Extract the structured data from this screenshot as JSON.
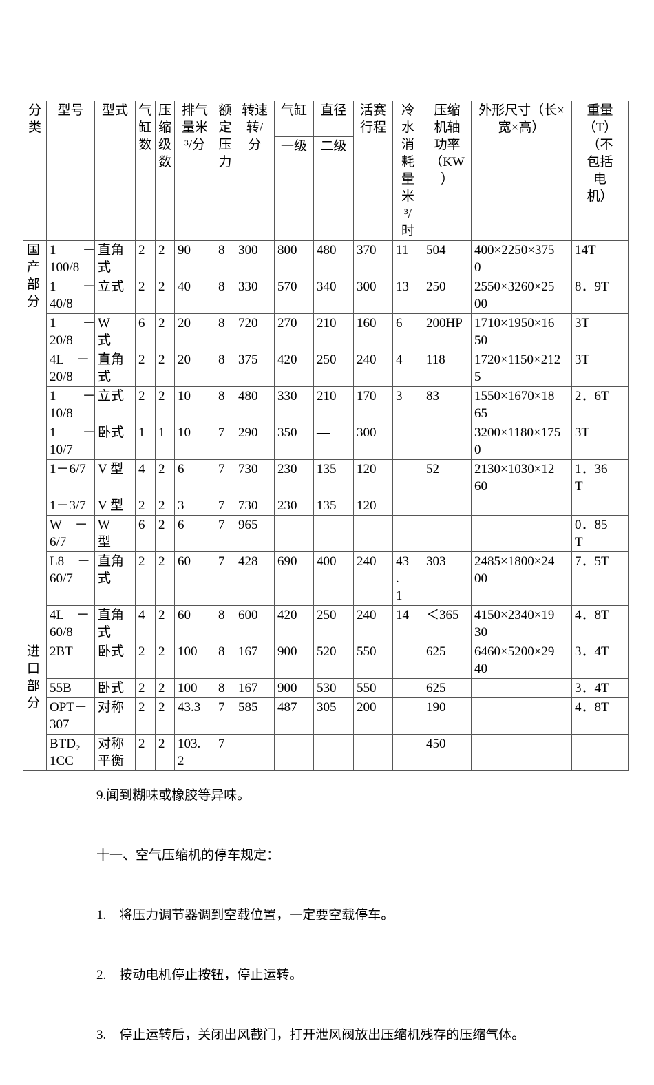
{
  "table": {
    "border_color": "#565656",
    "header": {
      "category": "分\n类",
      "model": "型号",
      "type": "型式",
      "cylinders": "气\n缸\n数",
      "stages": "压\n缩\n级\n数",
      "displacement": "排气\n量米\n³/分",
      "rated_pressure": "额\n定\n压\n力",
      "speed": "转速\n转/\n分",
      "cylinder": "气缸",
      "diameter": "直径",
      "stage1": "一级",
      "stage2": "二级",
      "piston_stroke": "活赛\n行程",
      "cooling_water": "冷\n水\n消\n耗\n量\n米\n³/\n时",
      "shaft_power": "压缩\n机轴\n功率\n（KW\n）",
      "dimensions": "外形尺寸（长×\n宽×高）",
      "weight": "重量\n（T）\n（不\n包括\n电\n机）"
    },
    "groups": [
      {
        "category": "国\n产\n部\n分",
        "rows": [
          {
            "model": "1　　－\n100/8",
            "type": "直角\n式",
            "cylinders": "2",
            "stages": "2",
            "displacement": "90",
            "pressure": "8",
            "speed": "300",
            "stage1": "800",
            "stage2": "480",
            "stroke": "370",
            "cooling": "11",
            "power": "504",
            "dimensions": "400×2250×375\n0",
            "weight": "14T"
          },
          {
            "model": "1　　－\n40/8",
            "type": "立式",
            "cylinders": "2",
            "stages": "2",
            "displacement": "40",
            "pressure": "8",
            "speed": "330",
            "stage1": "570",
            "stage2": "340",
            "stroke": "300",
            "cooling": "13",
            "power": "250",
            "dimensions": "2550×3260×25\n00",
            "weight": "8．9T"
          },
          {
            "model": "1　　－\n20/8",
            "type": "W\n式",
            "cylinders": "6",
            "stages": "2",
            "displacement": "20",
            "pressure": "8",
            "speed": "720",
            "stage1": "270",
            "stage2": "210",
            "stroke": "160",
            "cooling": "6",
            "power": "200HP",
            "dimensions": "1710×1950×16\n50",
            "weight": "3T"
          },
          {
            "model": "4L　－\n20/8",
            "type": "直角\n式",
            "cylinders": "2",
            "stages": "2",
            "displacement": "20",
            "pressure": "8",
            "speed": "375",
            "stage1": "420",
            "stage2": "250",
            "stroke": "240",
            "cooling": "4",
            "power": "118",
            "dimensions": "1720×1150×212\n5",
            "weight": "3T"
          },
          {
            "model": "1　　－\n10/8",
            "type": "立式",
            "cylinders": "2",
            "stages": "2",
            "displacement": "10",
            "pressure": "8",
            "speed": "480",
            "stage1": "330",
            "stage2": "210",
            "stroke": "170",
            "cooling": "3",
            "power": "83",
            "dimensions": "1550×1670×18\n65",
            "weight": "2．6T"
          },
          {
            "model": "1　　－\n10/7",
            "type": "卧式",
            "cylinders": "1",
            "stages": "1",
            "displacement": "10",
            "pressure": "7",
            "speed": "290",
            "stage1": "350",
            "stage2": "—",
            "stroke": "300",
            "cooling": "",
            "power": "",
            "dimensions": "3200×1180×175\n0",
            "weight": "3T"
          },
          {
            "model": "1－6/7",
            "type": "V 型",
            "cylinders": "4",
            "stages": "2",
            "displacement": "6",
            "pressure": "7",
            "speed": "730",
            "stage1": "230",
            "stage2": "135",
            "stroke": "120",
            "cooling": "",
            "power": "52",
            "dimensions": "2130×1030×12\n60",
            "weight": "1．36\nT"
          },
          {
            "model": "1－3/7",
            "type": "V 型",
            "cylinders": "2",
            "stages": "2",
            "displacement": "3",
            "pressure": "7",
            "speed": "730",
            "stage1": "230",
            "stage2": "135",
            "stroke": "120",
            "cooling": "",
            "power": "",
            "dimensions": "",
            "weight": ""
          },
          {
            "model": "W　－\n6/7",
            "type": "W\n型",
            "cylinders": "6",
            "stages": "2",
            "displacement": "6",
            "pressure": "7",
            "speed": "965",
            "stage1": "",
            "stage2": "",
            "stroke": "",
            "cooling": "",
            "power": "",
            "dimensions": "",
            "weight": "0．85\nT"
          },
          {
            "model": "L8　－\n60/7",
            "type": "直角\n式",
            "cylinders": "2",
            "stages": "2",
            "displacement": "60",
            "pressure": "7",
            "speed": "428",
            "stage1": "690",
            "stage2": "400",
            "stroke": "240",
            "cooling": "43\n.\n1",
            "power": "303",
            "dimensions": "2485×1800×24\n00",
            "weight": "7．5T"
          },
          {
            "model": "4L　－\n60/8",
            "type": "直角\n式",
            "cylinders": "4",
            "stages": "2",
            "displacement": "60",
            "pressure": "8",
            "speed": "600",
            "stage1": "420",
            "stage2": "250",
            "stroke": "240",
            "cooling": "14",
            "power": "＜365",
            "dimensions": "4150×2340×19\n30",
            "weight": "4．8T"
          }
        ]
      },
      {
        "category": "进\n口\n部\n分",
        "rows": [
          {
            "model": "2BT",
            "type": "卧式",
            "cylinders": "2",
            "stages": "2",
            "displacement": "100",
            "pressure": "8",
            "speed": "167",
            "stage1": "900",
            "stage2": "520",
            "stroke": "550",
            "cooling": "",
            "power": "625",
            "dimensions": "6460×5200×29\n40",
            "weight": "3．4T"
          },
          {
            "model": "55B",
            "type": "卧式",
            "cylinders": "2",
            "stages": "2",
            "displacement": "100",
            "pressure": "8",
            "speed": "167",
            "stage1": "900",
            "stage2": "530",
            "stroke": "550",
            "cooling": "",
            "power": "625",
            "dimensions": "",
            "weight": "3．4T"
          },
          {
            "model": "OPT－\n307",
            "type": "对称",
            "cylinders": "2",
            "stages": "2",
            "displacement": "43.3",
            "pressure": "7",
            "speed": "585",
            "stage1": "487",
            "stage2": "305",
            "stroke": "200",
            "cooling": "",
            "power": "190",
            "dimensions": "",
            "weight": "4．8T"
          },
          {
            "model": "BTD₂⁻\n1CC",
            "type": "对称\n平衡",
            "cylinders": "2",
            "stages": "2",
            "displacement": "103.\n2",
            "pressure": "7",
            "speed": "",
            "stage1": "",
            "stage2": "",
            "stroke": "",
            "cooling": "",
            "power": "450",
            "dimensions": "",
            "weight": ""
          }
        ]
      }
    ]
  },
  "notes": {
    "lines": [
      "9.闻到糊味或橡胶等异味。",
      "十一、空气压缩机的停车规定：",
      "1.　将压力调节器调到空载位置，一定要空载停车。",
      "2.　按动电机停止按钮，停止运转。",
      "3.　停止运转后，关闭出风截门，打开泄风阀放出压缩机残存的压缩气体。"
    ]
  }
}
